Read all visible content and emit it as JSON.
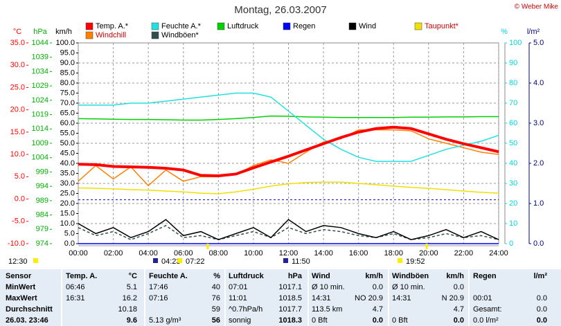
{
  "chart_data": {
    "type": "line",
    "title": "Montag, 26.03.2007",
    "copyright": "© Weber Mike",
    "xlim": [
      0,
      24
    ],
    "xticks": [
      {
        "value": 0,
        "label": "00:00"
      },
      {
        "value": 2,
        "label": "02:00"
      },
      {
        "value": 4,
        "label": "04:00"
      },
      {
        "value": 6,
        "label": "06:00"
      },
      {
        "value": 8,
        "label": "08:00"
      },
      {
        "value": 10,
        "label": "10:00"
      },
      {
        "value": 12,
        "label": "12:00"
      },
      {
        "value": 14,
        "label": "14:00"
      },
      {
        "value": 16,
        "label": "16:00"
      },
      {
        "value": 18,
        "label": "18:00"
      },
      {
        "value": 20,
        "label": "20:00"
      },
      {
        "value": 22,
        "label": "22:00"
      },
      {
        "value": 24,
        "label": "24:00"
      }
    ],
    "grid": true,
    "axes": [
      {
        "label": "°C",
        "color": "#ff0000",
        "side": "left",
        "lim": [
          -10,
          35
        ],
        "ticks": [
          {
            "value": -10,
            "label": "-10.0"
          },
          {
            "value": -5,
            "label": "-5.0"
          },
          {
            "value": 0,
            "label": "0.0"
          },
          {
            "value": 5,
            "label": "5.0"
          },
          {
            "value": 10,
            "label": "10.0"
          },
          {
            "value": 15,
            "label": "15.0"
          },
          {
            "value": 20,
            "label": "20.0"
          },
          {
            "value": 25,
            "label": "25.0"
          },
          {
            "value": 30,
            "label": "30.0"
          },
          {
            "value": 35,
            "label": "35.0"
          }
        ]
      },
      {
        "label": "hPa",
        "color": "#00b000",
        "side": "left",
        "lim": [
          974,
          1044
        ],
        "ticks": [
          974,
          979,
          984,
          989,
          994,
          999,
          1004,
          1009,
          1014,
          1019,
          1024,
          1029,
          1034,
          1039,
          1044
        ]
      },
      {
        "label": "km/h",
        "color": "#000000",
        "side": "left",
        "lim": [
          0,
          100
        ],
        "ticks": [
          {
            "value": 0,
            "label": "0.0"
          },
          {
            "value": 5,
            "label": "5.0"
          },
          {
            "value": 10,
            "label": "10.0"
          },
          {
            "value": 15,
            "label": "15.0"
          },
          {
            "value": 20,
            "label": "20.0"
          },
          {
            "value": 25,
            "label": "25.0"
          },
          {
            "value": 30,
            "label": "30.0"
          },
          {
            "value": 35,
            "label": "35.0"
          },
          {
            "value": 40,
            "label": "40.0"
          },
          {
            "value": 45,
            "label": "45.0"
          },
          {
            "value": 50,
            "label": "50.0"
          },
          {
            "value": 55,
            "label": "55.0"
          },
          {
            "value": 60,
            "label": "60.0"
          },
          {
            "value": 65,
            "label": "65.0"
          },
          {
            "value": 70,
            "label": "70.0"
          },
          {
            "value": 75,
            "label": "75.0"
          },
          {
            "value": 80,
            "label": "80.0"
          },
          {
            "value": 85,
            "label": "85.0"
          },
          {
            "value": 90,
            "label": "90.0"
          },
          {
            "value": 95,
            "label": "95.0"
          },
          {
            "value": 100,
            "label": "100.0"
          }
        ]
      },
      {
        "label": "%",
        "color": "#00d8d8",
        "side": "right",
        "lim": [
          0,
          100
        ],
        "ticks": [
          0,
          10,
          20,
          30,
          40,
          50,
          60,
          70,
          80,
          90,
          100
        ]
      },
      {
        "label": "l/m²",
        "color": "#000080",
        "side": "right",
        "lim": [
          0,
          5
        ],
        "ticks": [
          {
            "value": 0,
            "label": "0.0"
          },
          {
            "value": 1,
            "label": "1.0"
          },
          {
            "value": 2,
            "label": "2.0"
          },
          {
            "value": 3,
            "label": "3.0"
          },
          {
            "value": 4,
            "label": "4.0"
          },
          {
            "value": 5,
            "label": "5.0"
          }
        ]
      }
    ],
    "x": [
      0,
      1,
      2,
      3,
      4,
      5,
      6,
      7,
      8,
      9,
      10,
      11,
      12,
      13,
      14,
      15,
      16,
      17,
      18,
      19,
      20,
      21,
      22,
      23,
      24
    ],
    "series": [
      {
        "name": "Temp. A.*",
        "color": "#ff0000",
        "axis": 0,
        "values": [
          7.8,
          7.7,
          7.3,
          7.2,
          7.1,
          6.9,
          6.5,
          5.3,
          5.2,
          5.6,
          7.0,
          8.3,
          9.6,
          11.0,
          12.4,
          13.8,
          15.0,
          15.8,
          16.1,
          15.8,
          14.6,
          13.4,
          12.4,
          11.5,
          10.6
        ]
      },
      {
        "name": "Feuchte A.*",
        "color": "#22e0e0",
        "axis": 3,
        "values": [
          69,
          69,
          69,
          70,
          70,
          71,
          72,
          73,
          74,
          75,
          75,
          73,
          66,
          59,
          52,
          47,
          43,
          41,
          41,
          41,
          44,
          47,
          49,
          51,
          54
        ]
      },
      {
        "name": "Luftdruck",
        "color": "#00d000",
        "axis": 1,
        "values": [
          1017.6,
          1017.5,
          1017.4,
          1017.3,
          1017.3,
          1017.2,
          1017.1,
          1017.1,
          1017.3,
          1017.6,
          1018.0,
          1018.5,
          1018.4,
          1018.2,
          1018.1,
          1018.0,
          1018.0,
          1018.0,
          1018.0,
          1018.1,
          1018.1,
          1018.2,
          1018.2,
          1018.3,
          1018.3
        ]
      },
      {
        "name": "Regen",
        "color": "#0000ff",
        "axis": 4,
        "values": [
          0,
          0,
          0,
          0,
          0,
          0,
          0,
          0,
          0,
          0,
          0,
          0,
          0,
          0,
          0,
          0,
          0,
          0,
          0,
          0,
          0,
          0,
          0,
          0,
          0
        ]
      },
      {
        "name": "Wind",
        "color": "#000000",
        "axis": 2,
        "values": [
          10,
          5,
          8,
          3,
          6,
          12,
          4,
          6,
          2,
          5,
          8,
          3,
          12,
          6,
          9,
          8,
          5,
          3,
          6,
          2,
          4,
          7,
          3,
          6,
          2
        ]
      },
      {
        "name": "Taupunkt*",
        "color": "#f0e000",
        "axis": 0,
        "values": [
          2.5,
          2.4,
          2.3,
          2.1,
          2.0,
          1.8,
          1.6,
          1.3,
          1.2,
          1.6,
          2.2,
          2.9,
          3.4,
          3.7,
          3.8,
          3.8,
          3.5,
          3.2,
          2.9,
          2.6,
          2.4,
          2.1,
          1.8,
          1.5,
          1.3
        ]
      },
      {
        "name": "Windchill",
        "color": "#ff8000",
        "axis": 0,
        "values": [
          4.0,
          7.5,
          4.5,
          7.2,
          3.0,
          6.5,
          4.0,
          5.0,
          5.0,
          5.5,
          7.5,
          8.8,
          8.0,
          10.5,
          12.8,
          13.5,
          15.5,
          15.5,
          15.5,
          15.3,
          13.5,
          12.5,
          11.5,
          10.5,
          10.0
        ]
      },
      {
        "name": "Windböen*",
        "color": "#2f4f4f",
        "axis": 2,
        "values": [
          8,
          4,
          6,
          2,
          5,
          9,
          3,
          4,
          2,
          4,
          6,
          3,
          8,
          5,
          7,
          6,
          4,
          3,
          5,
          2,
          3,
          5,
          3,
          4,
          2
        ]
      }
    ],
    "sun_events": [
      "12:30",
      "04:23",
      "07:22",
      "11:50",
      "19:52"
    ]
  },
  "table": {
    "rows": [
      [
        "Sensor",
        "Temp. A.",
        "°C",
        "Feuchte A.",
        "%",
        "Luftdruck",
        "hPa",
        "Wind",
        "km/h",
        "Windböen",
        "km/h",
        "Regen",
        "l/m²"
      ],
      [
        "MinWert",
        "06:46",
        "5.1",
        "17:46",
        "40",
        "07:01",
        "1017.1",
        "Ø 10 min.",
        "0.0",
        "Ø 10 min.",
        "0.0",
        null,
        null
      ],
      [
        "MaxWert",
        "16:31",
        "16.2",
        "07:16",
        "76",
        "11:01",
        "1018.5",
        "14:31",
        "NO 20.9",
        "14:31",
        "N 20.9",
        "00:01",
        "0.0"
      ],
      [
        "Durchschnitt",
        null,
        "10.18",
        null,
        "59",
        "^0.7hPa/h",
        "1017.7",
        "113.5 km",
        "4.7",
        null,
        "4.7",
        "Gesamt:",
        "0.0"
      ],
      [
        "26.03. 23:46",
        null,
        "9.6",
        "5.13 g/m³",
        "56",
        "sonnig",
        "1018.3",
        "0 Bft",
        "0.0",
        "0 Bft",
        "0.0",
        "0.0 l/m²",
        "0.0"
      ]
    ]
  }
}
